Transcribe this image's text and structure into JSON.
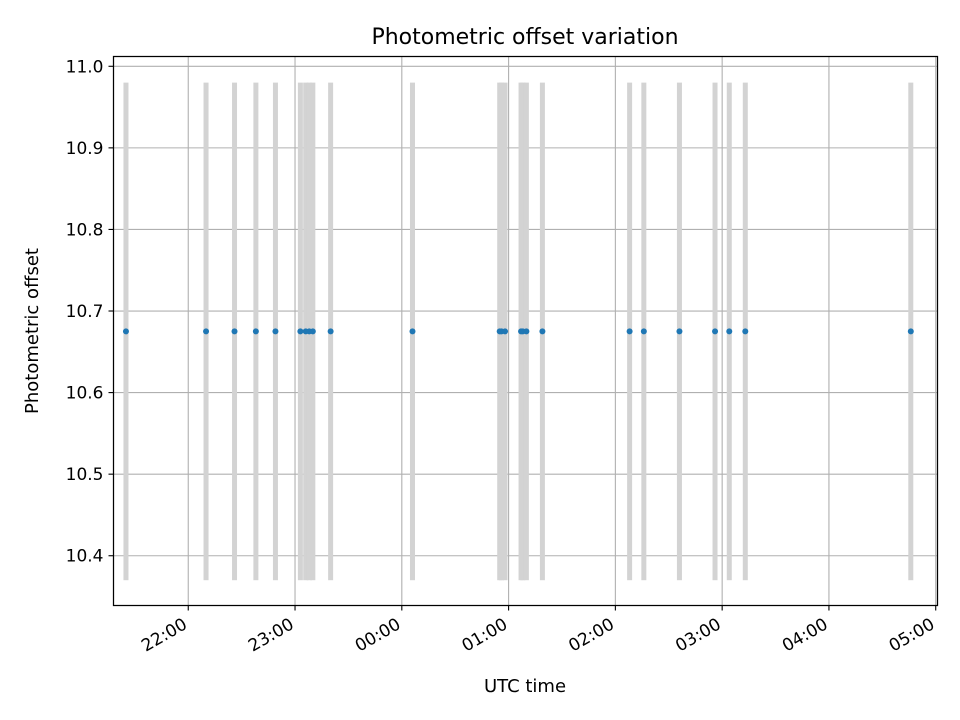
{
  "chart_data": {
    "type": "scatter",
    "title": "Photometric offset variation",
    "xlabel": "UTC time",
    "ylabel": "Photometric offset",
    "xlim": [
      "21:18",
      "05:01"
    ],
    "ylim": [
      10.339,
      11.012
    ],
    "y_ticks": [
      10.4,
      10.5,
      10.6,
      10.7,
      10.8,
      10.9,
      11.0
    ],
    "y_tick_labels": [
      "10.4",
      "10.5",
      "10.6",
      "10.7",
      "10.8",
      "10.9",
      "11.0"
    ],
    "x_ticks": [
      "22:00",
      "23:00",
      "00:00",
      "01:00",
      "02:00",
      "03:00",
      "04:00",
      "05:00"
    ],
    "x_tick_labels": [
      "22:00",
      "23:00",
      "00:00",
      "01:00",
      "02:00",
      "03:00",
      "04:00",
      "05:00"
    ],
    "grid": true,
    "marker_color": "#1f77b4",
    "band_color": "#d3d3d3",
    "band_range": [
      10.37,
      10.98
    ],
    "points": [
      {
        "x": "21:25",
        "y": 10.675
      },
      {
        "x": "22:10",
        "y": 10.675
      },
      {
        "x": "22:26",
        "y": 10.675
      },
      {
        "x": "22:38",
        "y": 10.675
      },
      {
        "x": "22:49",
        "y": 10.675
      },
      {
        "x": "23:03",
        "y": 10.675
      },
      {
        "x": "23:06",
        "y": 10.675
      },
      {
        "x": "23:08",
        "y": 10.675
      },
      {
        "x": "23:10",
        "y": 10.675
      },
      {
        "x": "23:20",
        "y": 10.675
      },
      {
        "x": "00:06",
        "y": 10.675
      },
      {
        "x": "00:55",
        "y": 10.675
      },
      {
        "x": "00:56",
        "y": 10.675
      },
      {
        "x": "00:58",
        "y": 10.675
      },
      {
        "x": "01:07",
        "y": 10.675
      },
      {
        "x": "01:08",
        "y": 10.675
      },
      {
        "x": "01:10",
        "y": 10.675
      },
      {
        "x": "01:19",
        "y": 10.675
      },
      {
        "x": "02:08",
        "y": 10.675
      },
      {
        "x": "02:16",
        "y": 10.675
      },
      {
        "x": "02:36",
        "y": 10.675
      },
      {
        "x": "02:56",
        "y": 10.675
      },
      {
        "x": "03:04",
        "y": 10.675
      },
      {
        "x": "03:13",
        "y": 10.675
      },
      {
        "x": "04:46",
        "y": 10.675
      }
    ]
  }
}
